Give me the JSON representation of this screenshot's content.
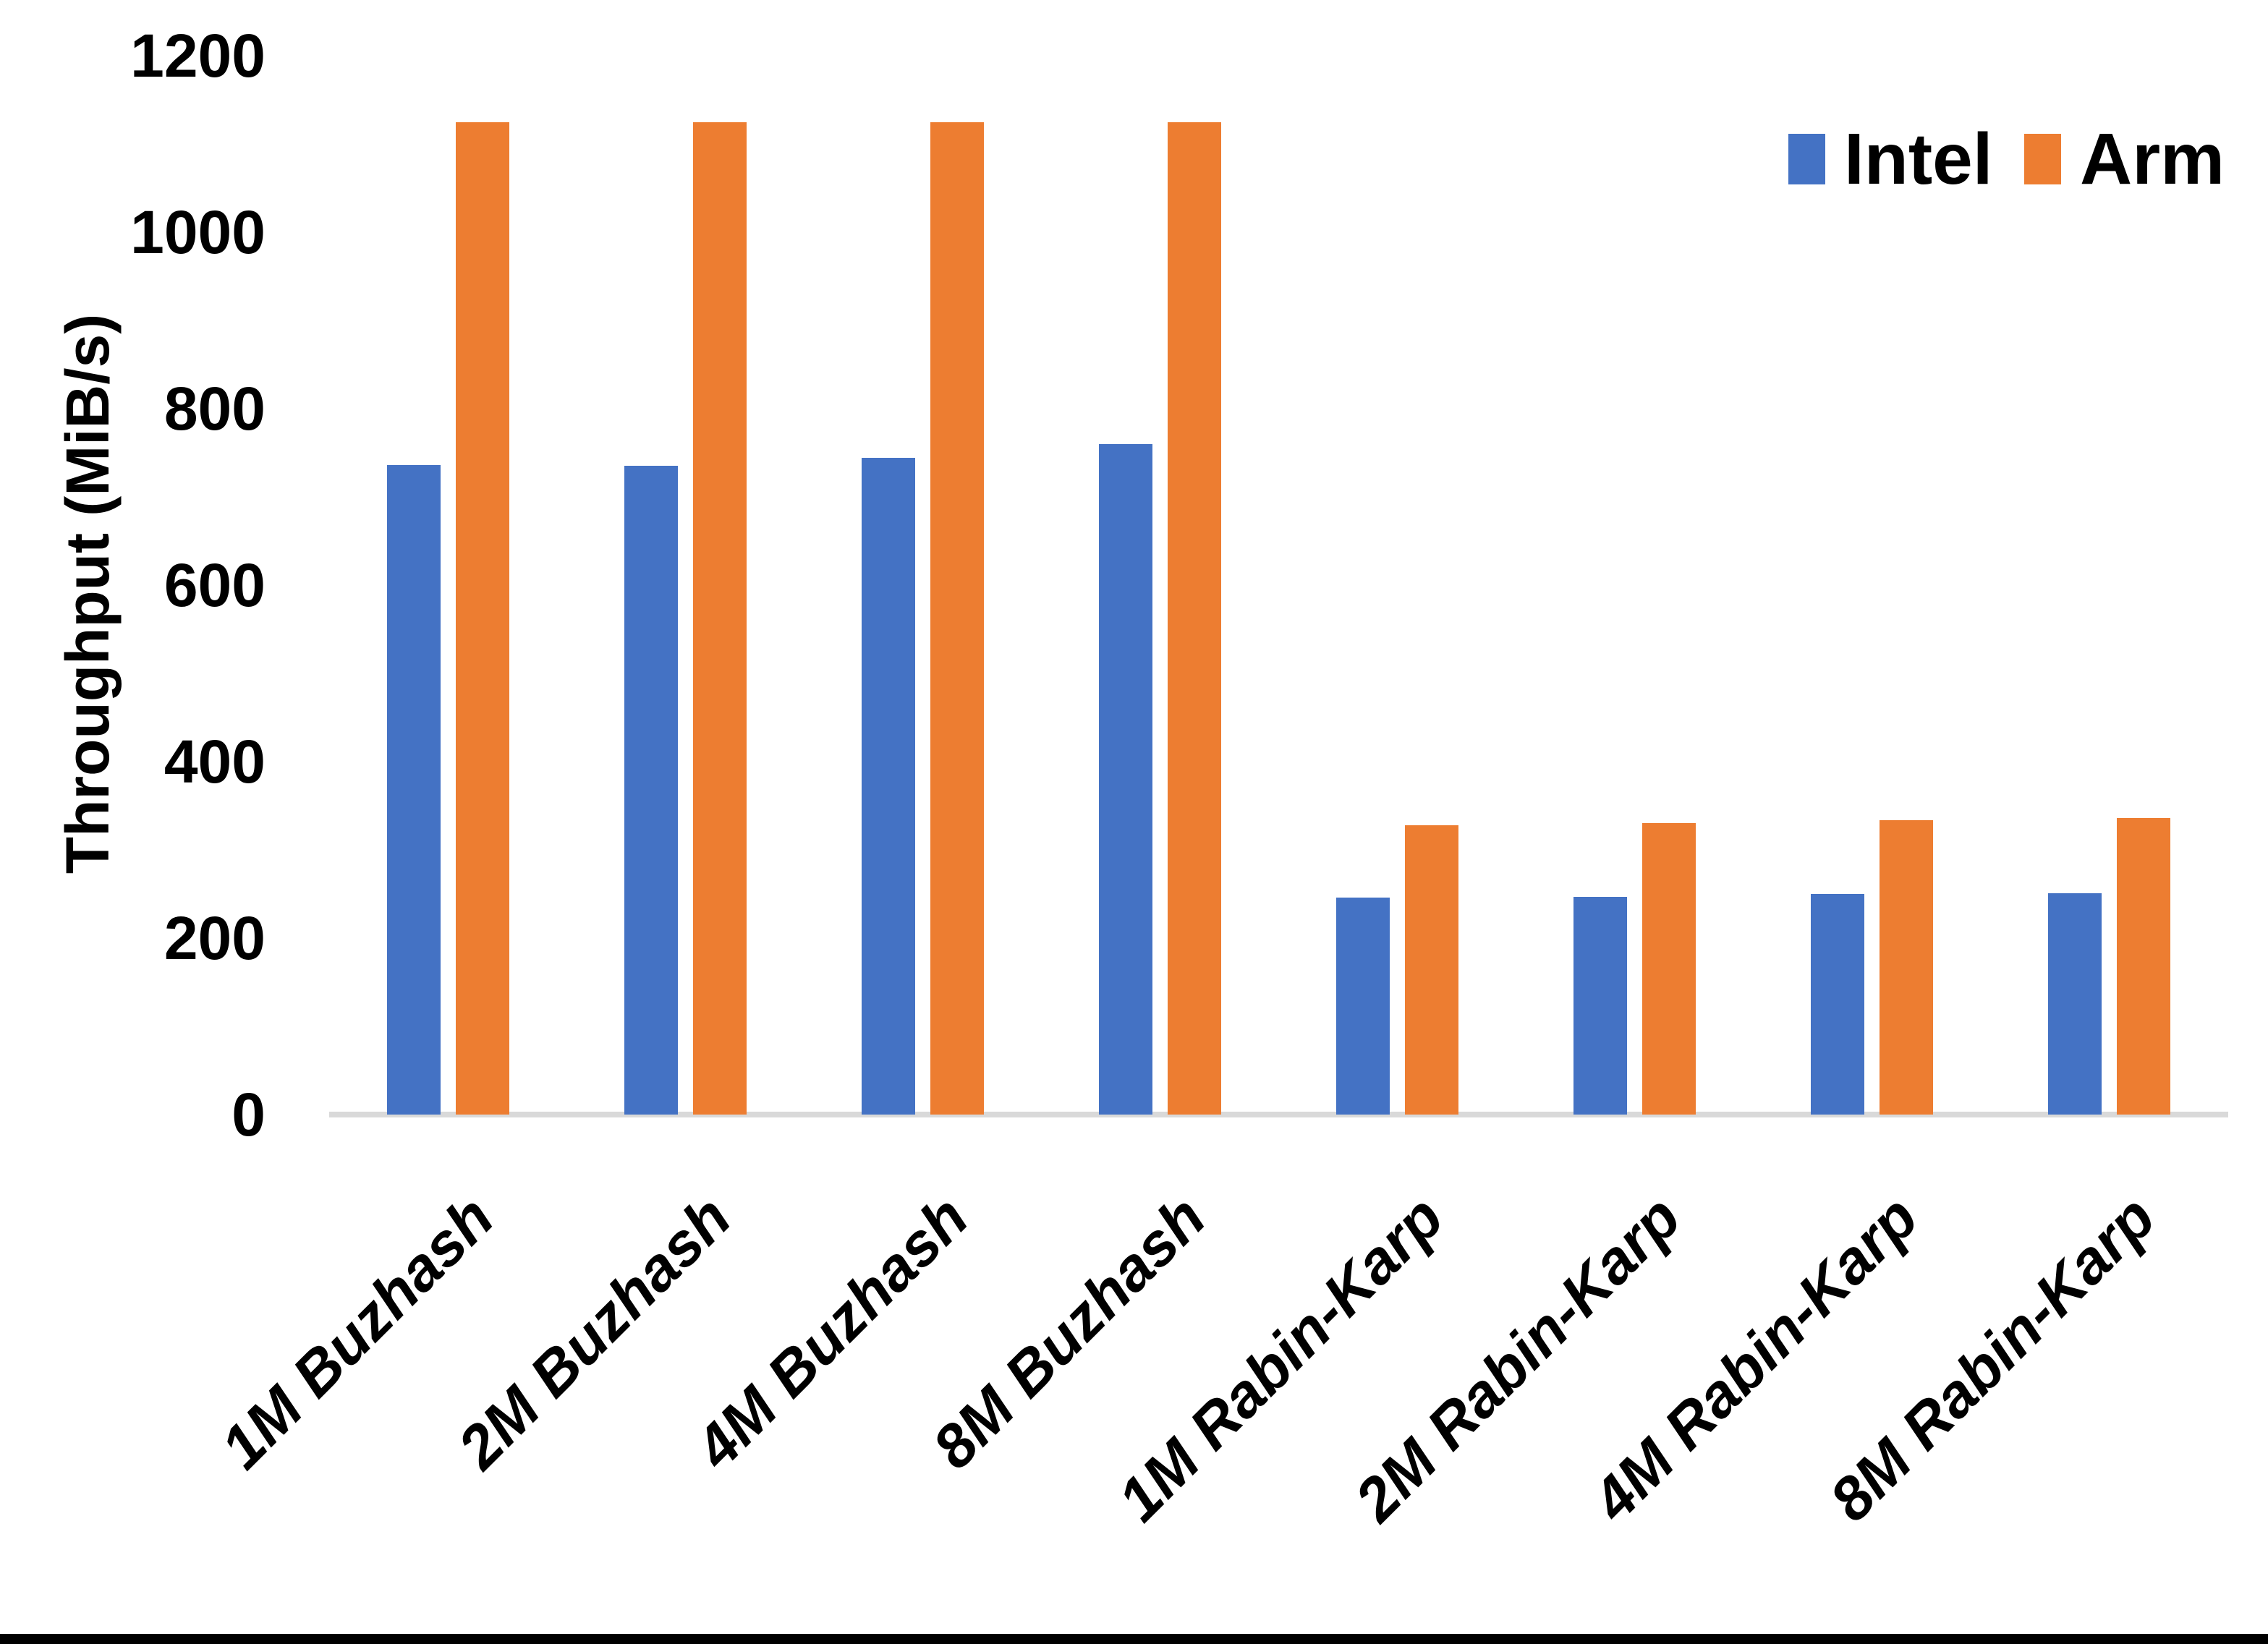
{
  "page": {
    "background": "#FFFFFF",
    "bottom_border_color": "#000000",
    "text_color": "#000000"
  },
  "chart_data": {
    "type": "bar",
    "title": "",
    "xlabel": "",
    "ylabel": "Throughput (MiB/s)",
    "categories": [
      "1M Buzhash",
      "2M Buzhash",
      "4M Buzhash",
      "8M Buzhash",
      "1M Rabin-Karp",
      "2M Rabin-Karp",
      "4M Rabin-Karp",
      "8M Rabin-Karp"
    ],
    "series": [
      {
        "name": "Intel",
        "color": "#4472C4",
        "values": [
          736,
          735,
          744,
          760,
          246,
          247,
          250,
          251
        ]
      },
      {
        "name": "Arm",
        "color": "#ED7D31",
        "values": [
          1125,
          1125,
          1125,
          1125,
          328,
          330,
          334,
          336
        ]
      }
    ],
    "ylim": [
      0,
      1200
    ],
    "yticks": [
      0,
      200,
      400,
      600,
      800,
      1000,
      1200
    ],
    "grid": false,
    "axis_line_color": "#D9D9D9",
    "legend": {
      "position": "top-right"
    }
  }
}
